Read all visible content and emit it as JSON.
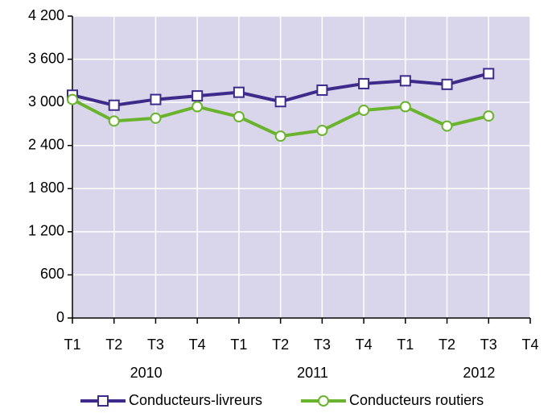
{
  "chart_data": {
    "type": "line",
    "categories": [
      "T1",
      "T2",
      "T3",
      "T4",
      "T1",
      "T2",
      "T3",
      "T4",
      "T1",
      "T2",
      "T3",
      "T4"
    ],
    "years": [
      "2010",
      "2011",
      "2012"
    ],
    "series": [
      {
        "name": "Conducteurs-livreurs",
        "color": "#3d2a8a",
        "marker": "square",
        "values": [
          3100,
          2960,
          3040,
          3090,
          3140,
          3010,
          3170,
          3260,
          3300,
          3250,
          3400,
          null
        ]
      },
      {
        "name": "Conducteurs routiers",
        "color": "#6ab42d",
        "marker": "circle",
        "values": [
          3040,
          2740,
          2780,
          2940,
          2800,
          2530,
          2610,
          2890,
          2940,
          2670,
          2810,
          null
        ]
      }
    ],
    "ylim": [
      0,
      4200
    ],
    "yticks": [
      0,
      600,
      {
        "value": 1200,
        "label": "1 200"
      },
      {
        "value": 1800,
        "label": "1 800"
      },
      {
        "value": 2400,
        "label": "2 400"
      },
      {
        "value": 3000,
        "label": "3 000"
      },
      {
        "value": 3600,
        "label": "3 600"
      },
      {
        "value": 4200,
        "label": "4 200"
      }
    ],
    "grid": true
  }
}
